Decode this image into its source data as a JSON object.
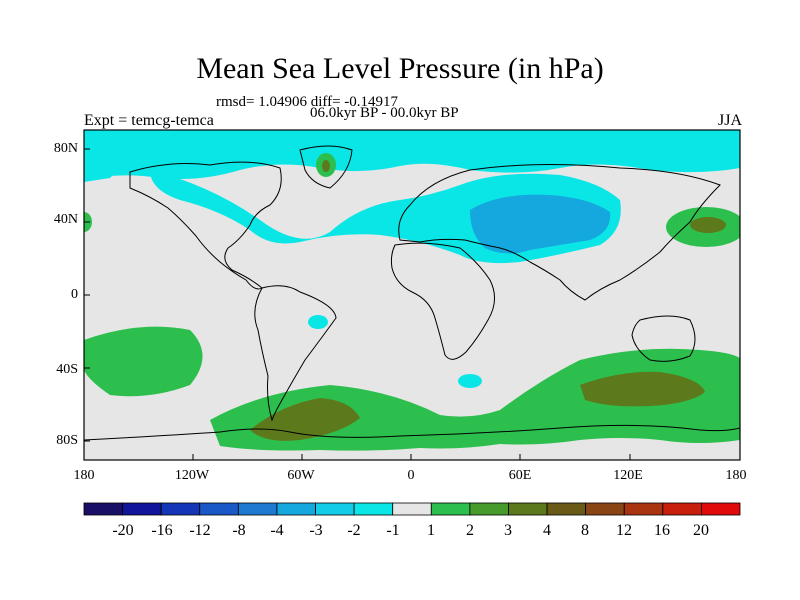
{
  "title": "Mean Sea Level Pressure (in hPa)",
  "stats": "rmsd= 1.04906 diff= -0.14917",
  "period": "06.0kyr BP - 00.0kyr BP",
  "experiment": "Expt = temcg-temca",
  "season": "JJA",
  "map": {
    "projection": "cylindrical equidistant",
    "lon_range": [
      -180,
      180
    ],
    "lat_range": [
      -90,
      90
    ],
    "background_color": "#e6e6e6",
    "y_ticks": [
      {
        "label": "80N",
        "lat": 80
      },
      {
        "label": "40N",
        "lat": 40
      },
      {
        "label": "0",
        "lat": 0
      },
      {
        "label": "40S",
        "lat": -40
      },
      {
        "label": "80S",
        "lat": -80
      }
    ],
    "x_ticks": [
      {
        "label": "180",
        "lon": -180
      },
      {
        "label": "120W",
        "lon": -120
      },
      {
        "label": "60W",
        "lon": -60
      },
      {
        "label": "0",
        "lon": 0
      },
      {
        "label": "60E",
        "lon": 60
      },
      {
        "label": "120E",
        "lon": 120
      },
      {
        "label": "180",
        "lon": 180
      }
    ]
  },
  "colorbar": {
    "colors": [
      "#1a0f66",
      "#11159a",
      "#1535b8",
      "#1a58c8",
      "#1e7ad0",
      "#14a8de",
      "#12cce8",
      "#0ae6e6",
      "#e6e6e6",
      "#2dbf4e",
      "#479b2b",
      "#5c7a1c",
      "#6a5a18",
      "#8a4514",
      "#a83412",
      "#c81e0c",
      "#e00a0a"
    ],
    "labels": [
      "-20",
      "-16",
      "-12",
      "-8",
      "-4",
      "-3",
      "-2",
      "-1",
      "1",
      "2",
      "3",
      "4",
      "8",
      "12",
      "16",
      "20"
    ]
  }
}
